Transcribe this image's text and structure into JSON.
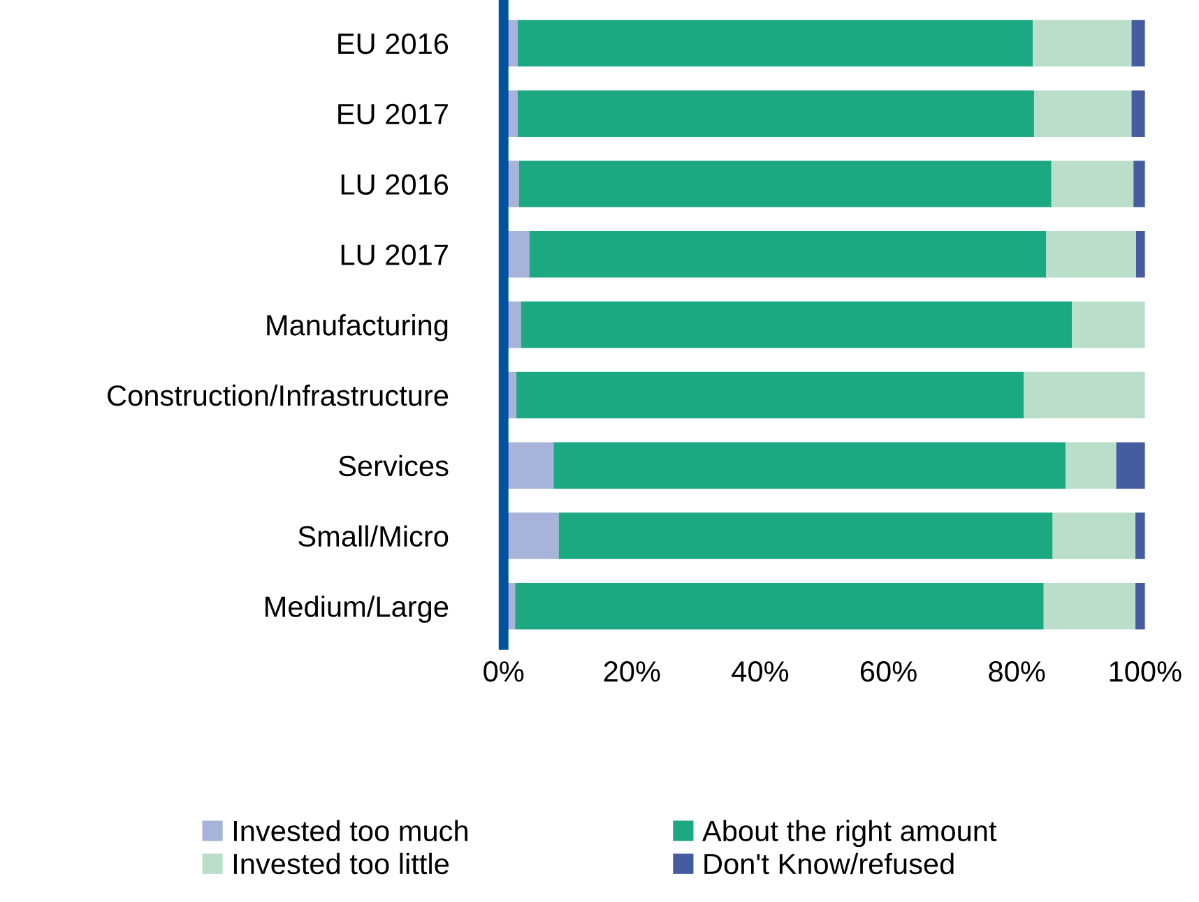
{
  "chart_data": {
    "type": "bar",
    "orientation": "horizontal",
    "stacked": true,
    "categories": [
      "EU 2016",
      "EU 2017",
      "LU 2016",
      "LU 2017",
      "Manufacturing",
      "Construction/Infrastructure",
      "Services",
      "Small/Micro",
      "Medium/Large"
    ],
    "series": [
      {
        "name": "Invested too much",
        "color": "#a7b3d9",
        "values": [
          2.2,
          2.2,
          2.4,
          4.0,
          2.7,
          2.0,
          7.8,
          8.6,
          1.8
        ]
      },
      {
        "name": "About the right amount",
        "color": "#1ca880",
        "values": [
          80.3,
          80.5,
          83.0,
          80.6,
          85.9,
          79.1,
          79.8,
          77.0,
          82.4
        ]
      },
      {
        "name": "Invested too little",
        "color": "#bbdecb",
        "values": [
          15.4,
          15.2,
          12.8,
          14.0,
          11.4,
          18.9,
          7.9,
          12.9,
          14.3
        ]
      },
      {
        "name": "Don't Know/refused",
        "color": "#465ca0",
        "values": [
          2.1,
          2.1,
          1.8,
          1.4,
          null,
          null,
          4.5,
          1.5,
          1.5
        ]
      }
    ],
    "xlim": [
      0,
      100
    ],
    "xticks": [
      {
        "value": 0,
        "label": "0%"
      },
      {
        "value": 20,
        "label": "20%"
      },
      {
        "value": 40,
        "label": "40%"
      },
      {
        "value": 60,
        "label": "60%"
      },
      {
        "value": 80,
        "label": "80%"
      },
      {
        "value": 100,
        "label": "100%"
      }
    ],
    "legend": "bottom",
    "grid": false
  }
}
